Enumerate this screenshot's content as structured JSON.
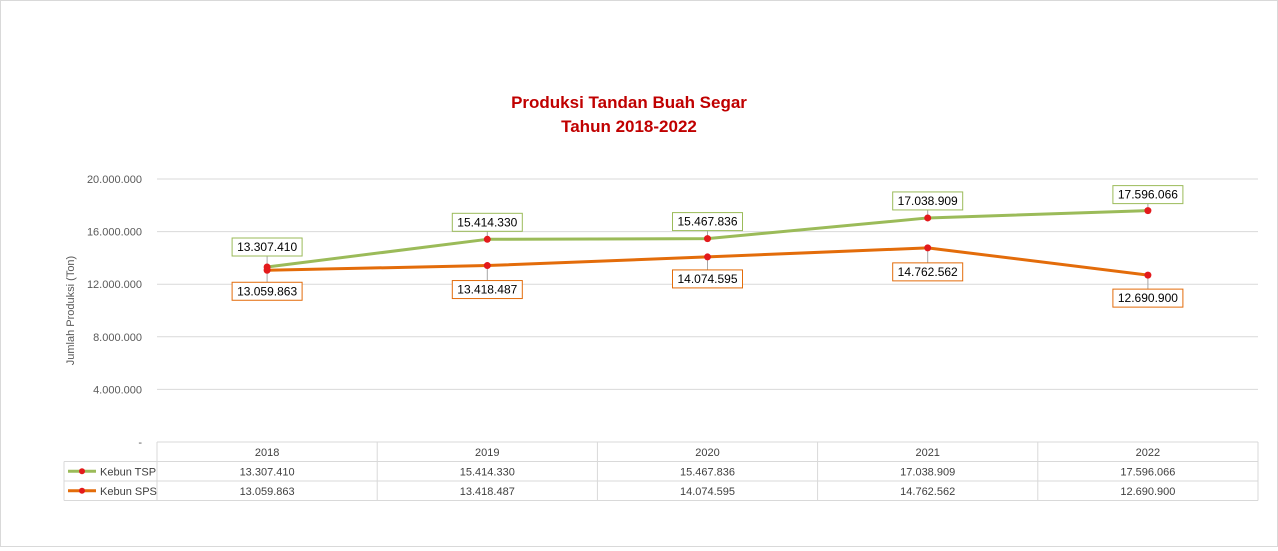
{
  "chart_data": {
    "type": "line",
    "title": [
      "Produksi Tandan Buah Segar",
      "Tahun 2018-2022"
    ],
    "ylabel": "Jumlah Produksi (Ton)",
    "xlabel": "",
    "categories": [
      "2018",
      "2019",
      "2020",
      "2021",
      "2022"
    ],
    "ylim": [
      0,
      20000000
    ],
    "yticks": [
      0,
      4000000,
      8000000,
      12000000,
      16000000,
      20000000
    ],
    "ytick_labels": [
      "-",
      "4.000.000",
      "8.000.000",
      "12.000.000",
      "16.000.000",
      "20.000.000"
    ],
    "grid": true,
    "legend": "data-table",
    "series": [
      {
        "name": "Kebun TSP",
        "color": "#9bbb59",
        "marker_color": "#e31a1c",
        "values": [
          13307410,
          15414330,
          15467836,
          17038909,
          17596066
        ],
        "labels": [
          "13.307.410",
          "15.414.330",
          "15.467.836",
          "17.038.909",
          "17.596.066"
        ]
      },
      {
        "name": "Kebun SPS",
        "color": "#e36c0a",
        "marker_color": "#e31a1c",
        "values": [
          13059863,
          13418487,
          14074595,
          14762562,
          12690900
        ],
        "labels": [
          "13.059.863",
          "13.418.487",
          "14.074.595",
          "14.762.562",
          "12.690.900"
        ]
      }
    ]
  },
  "colors": {
    "title": "#c00000",
    "grid": "#d9d9d9"
  }
}
